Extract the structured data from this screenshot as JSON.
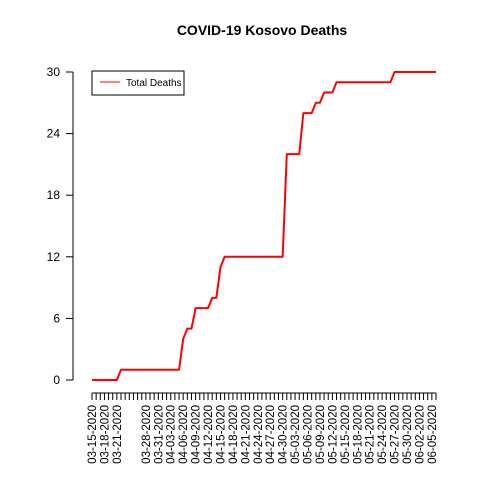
{
  "chart_data": {
    "type": "line",
    "title": "COVID-19 Kosovo Deaths",
    "xlabel": "",
    "ylabel": "",
    "ylim": [
      0,
      30
    ],
    "yticks": [
      0,
      6,
      12,
      18,
      24,
      30
    ],
    "x_start": "03-15-2020",
    "x_end": "06-06-2020",
    "x_tick_labels": [
      "03-15-2020",
      "03-18-2020",
      "03-21-2020",
      "03-28-2020",
      "03-31-2020",
      "04-03-2020",
      "04-06-2020",
      "04-09-2020",
      "04-12-2020",
      "04-15-2020",
      "04-18-2020",
      "04-21-2020",
      "04-24-2020",
      "04-27-2020",
      "04-30-2020",
      "05-03-2020",
      "05-06-2020",
      "05-09-2020",
      "05-12-2020",
      "05-15-2020",
      "05-18-2020",
      "05-21-2020",
      "05-24-2020",
      "05-27-2020",
      "05-30-2020",
      "06-02-2020",
      "06-05-2020"
    ],
    "legend_position": "top-left",
    "series": [
      {
        "name": "Total Deaths",
        "color": "#ff0000",
        "points": [
          [
            "03-15-2020",
            0
          ],
          [
            "03-21-2020",
            0
          ],
          [
            "03-22-2020",
            1
          ],
          [
            "04-05-2020",
            1
          ],
          [
            "04-06-2020",
            4
          ],
          [
            "04-07-2020",
            5
          ],
          [
            "04-08-2020",
            5
          ],
          [
            "04-09-2020",
            7
          ],
          [
            "04-12-2020",
            7
          ],
          [
            "04-13-2020",
            8
          ],
          [
            "04-14-2020",
            8
          ],
          [
            "04-15-2020",
            11
          ],
          [
            "04-16-2020",
            12
          ],
          [
            "04-30-2020",
            12
          ],
          [
            "05-01-2020",
            22
          ],
          [
            "05-04-2020",
            22
          ],
          [
            "05-05-2020",
            26
          ],
          [
            "05-07-2020",
            26
          ],
          [
            "05-08-2020",
            27
          ],
          [
            "05-09-2020",
            27
          ],
          [
            "05-10-2020",
            28
          ],
          [
            "05-12-2020",
            28
          ],
          [
            "05-13-2020",
            29
          ],
          [
            "05-26-2020",
            29
          ],
          [
            "05-27-2020",
            30
          ],
          [
            "06-06-2020",
            30
          ]
        ]
      }
    ]
  }
}
